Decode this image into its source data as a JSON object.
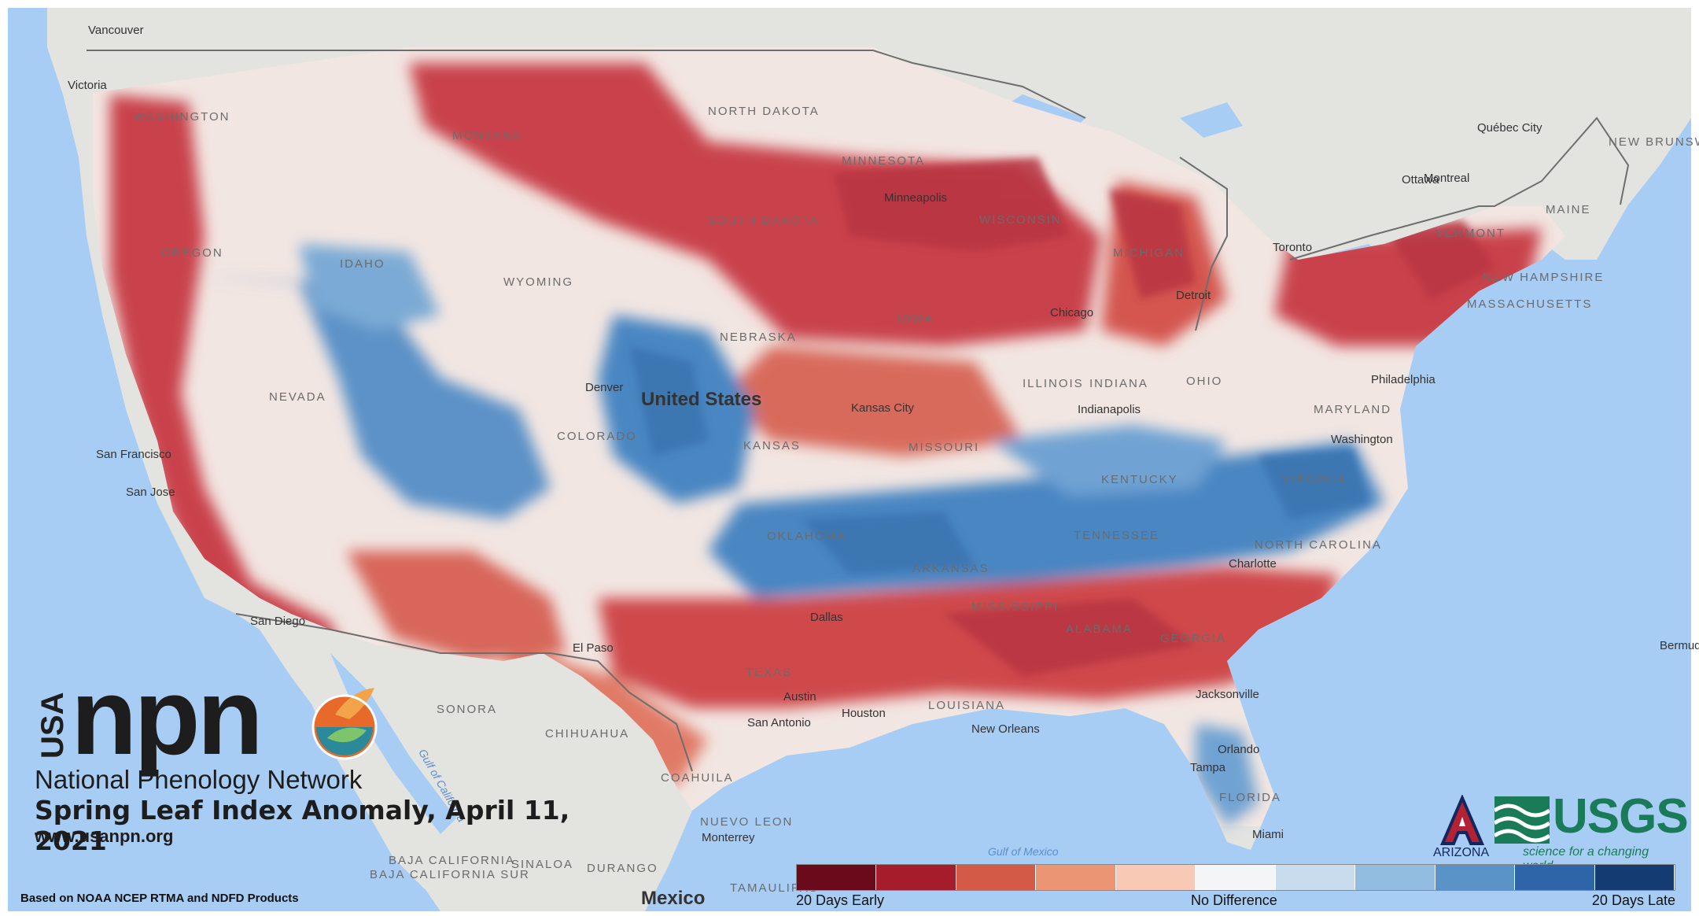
{
  "map": {
    "country_label": "United States",
    "mexico_label": "Mexico",
    "states": [
      "WASHINGTON",
      "OREGON",
      "IDAHO",
      "MONTANA",
      "WYOMING",
      "NORTH DAKOTA",
      "SOUTH DAKOTA",
      "NEBRASKA",
      "MINNESOTA",
      "WISCONSIN",
      "MICHIGAN",
      "IOWA",
      "ILLINOIS",
      "INDIANA",
      "OHIO",
      "MISSOURI",
      "KANSAS",
      "COLORADO",
      "NEVADA",
      "OKLAHOMA",
      "ARKANSAS",
      "KENTUCKY",
      "TENNESSEE",
      "VIRGINIA",
      "NORTH CAROLINA",
      "MISSISSIPPI",
      "ALABAMA",
      "GEORGIA",
      "LOUISIANA",
      "TEXAS",
      "FLORIDA",
      "MARYLAND",
      "VERMONT",
      "NEW HAMPSHIRE",
      "MASSACHUSETTS",
      "MAINE",
      "NEW BRUNSWICK",
      "SONORA",
      "CHIHUAHUA",
      "COAHUILA",
      "NUEVO LEON",
      "DURANGO",
      "SINALOA",
      "BAJA CALIFORNIA",
      "BAJA CALIFORNIA SUR",
      "TAMAULIPAS"
    ],
    "cities": [
      "Vancouver",
      "Victoria",
      "Minneapolis",
      "Chicago",
      "Detroit",
      "Toronto",
      "Ottawa",
      "Montreal",
      "Québec City",
      "Denver",
      "Kansas City",
      "Indianapolis",
      "Philadelphia",
      "Washington",
      "Charlotte",
      "San Francisco",
      "San Jose",
      "San Diego",
      "El Paso",
      "Austin",
      "San Antonio",
      "Houston",
      "Dallas",
      "New Orleans",
      "Jacksonville",
      "Orlando",
      "Tampa",
      "Miami",
      "Monterrey",
      "Bermuda"
    ],
    "water_labels": [
      "Gulf of California",
      "Gulf of Mexico"
    ]
  },
  "branding": {
    "usa": "USA",
    "npn": "npn",
    "network_name": "National Phenology Network",
    "title": "Spring Leaf Index Anomaly, April 11, 2021",
    "url": "www.usanpn.org",
    "credit": "Based on NOAA NCEP RTMA and NDFD Products",
    "usgs": "USGS",
    "usgs_tagline": "science for a changing world",
    "arizona": "ARIZONA"
  },
  "legend": {
    "colors": [
      "#6a0a1a",
      "#a51d2a",
      "#d45a48",
      "#eb9575",
      "#f8cab5",
      "#f4f5f7",
      "#c8dcee",
      "#92bde0",
      "#5a93c8",
      "#2e64a8",
      "#153c72"
    ],
    "left_label": "20 Days Early",
    "mid_label": "No Difference",
    "right_label": "20 Days Late"
  },
  "palette": {
    "ocean": "#a8cdf5",
    "land": "#e3e3e0",
    "early": "#c9424b",
    "late": "#4a86c2",
    "neutral": "#f2e6e2"
  }
}
